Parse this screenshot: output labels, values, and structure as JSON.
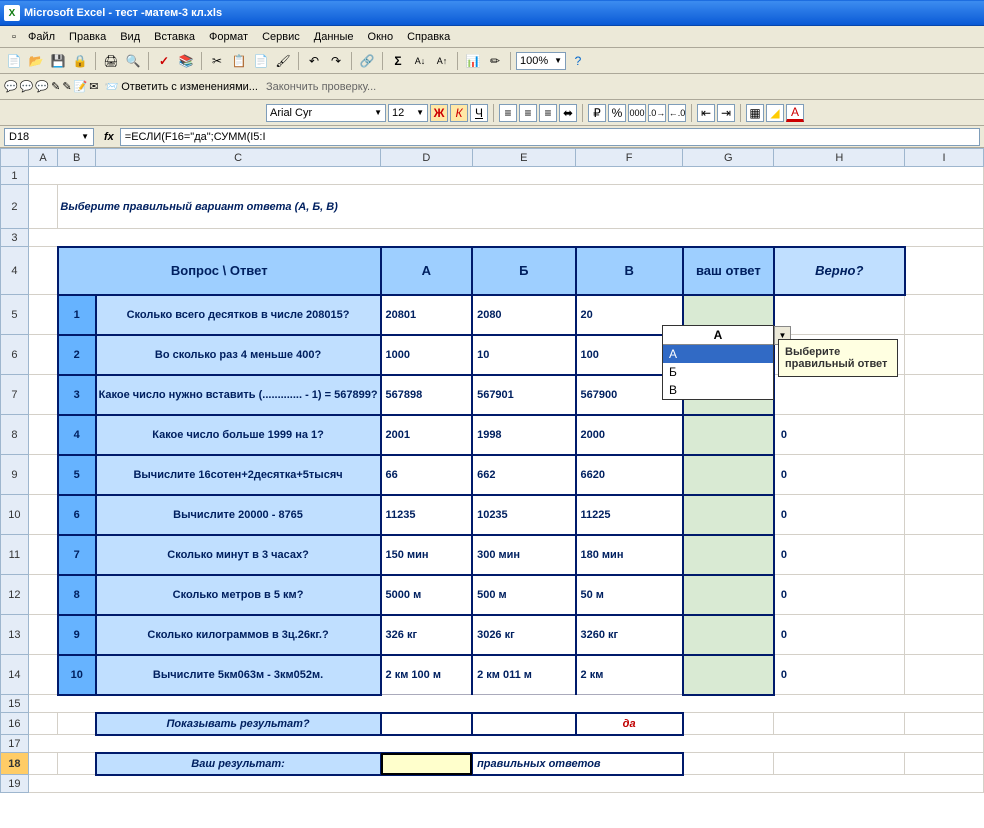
{
  "window": {
    "title": "Microsoft Excel - тест -матем-3 кл.xls",
    "app_icon_letter": "X"
  },
  "menu": {
    "items": [
      "Файл",
      "Правка",
      "Вид",
      "Вставка",
      "Формат",
      "Сервис",
      "Данные",
      "Окно",
      "Справка"
    ]
  },
  "toolbar": {
    "zoom": "100%",
    "font_name": "Arial Cyr",
    "font_size": "12",
    "review_reply": "Ответить с изменениями...",
    "review_end": "Закончить проверку..."
  },
  "namebox": {
    "cell_ref": "D18",
    "fx_label": "fx",
    "formula": "=ЕСЛИ(F16=\"да\";СУММ(I5:I"
  },
  "columns": [
    "A",
    "B",
    "C",
    "D",
    "E",
    "F",
    "G",
    "H",
    "I"
  ],
  "rows": [
    "1",
    "2",
    "3",
    "4",
    "5",
    "6",
    "7",
    "8",
    "9",
    "10",
    "11",
    "12",
    "13",
    "14",
    "15",
    "16",
    "17",
    "18",
    "19"
  ],
  "quiz": {
    "title": "Выберите правильный вариант ответа (А, Б, В)",
    "headers": {
      "question": "Вопрос   \\   Ответ",
      "a": "А",
      "b": "Б",
      "c": "В",
      "user": "ваш ответ",
      "correct": "Верно?"
    },
    "questions": [
      {
        "n": "1",
        "q": "Сколько всего десятков в числе 208015?",
        "a": "20801",
        "b": "2080",
        "c": "20",
        "user": "А",
        "verno": ""
      },
      {
        "n": "2",
        "q": "Во сколько раз 4 меньше 400?",
        "a": "1000",
        "b": "10",
        "c": "100",
        "user": "",
        "verno": ""
      },
      {
        "n": "3",
        "q": "Какое число нужно вставить (.............  - 1) = 567899?",
        "a": "567898",
        "b": "567901",
        "c": "567900",
        "user": "",
        "verno": ""
      },
      {
        "n": "4",
        "q": "Какое число больше 1999 на 1?",
        "a": "2001",
        "b": "1998",
        "c": "2000",
        "user": "",
        "verno": "0"
      },
      {
        "n": "5",
        "q": "Вычислите 16сотен+2десятка+5тысяч",
        "a": "66",
        "b": "662",
        "c": "6620",
        "user": "",
        "verno": "0"
      },
      {
        "n": "6",
        "q": "Вычислите   20000 - 8765",
        "a": "11235",
        "b": "10235",
        "c": "11225",
        "user": "",
        "verno": "0"
      },
      {
        "n": "7",
        "q": "Сколько минут в 3 часах?",
        "a": "150 мин",
        "b": " 300 мин",
        "c": "180 мин",
        "user": "",
        "verno": "0"
      },
      {
        "n": "8",
        "q": "Сколько метров в 5 км?",
        "a": "5000 м",
        "b": "500 м",
        "c": " 50 м",
        "user": "",
        "verno": "0"
      },
      {
        "n": "9",
        "q": "Сколько килограммов в 3ц.26кг.?",
        "a": " 326 кг",
        "b": "3026 кг",
        "c": "3260 кг",
        "user": "",
        "verno": "0"
      },
      {
        "n": "10",
        "q": "Вычислите 5км063м - 3км052м.",
        "a": "2 км 100 м",
        "b": "2 км 011 м",
        "c": "2 км",
        "user": "",
        "verno": "0"
      }
    ],
    "show_result_label": "Показывать результат?",
    "show_result_value": "да",
    "your_result_label": "Ваш результат:",
    "your_result_suffix": "правильных ответов"
  },
  "dropdown": {
    "selected": "А",
    "options": [
      "А",
      "Б",
      "В"
    ]
  },
  "tooltip": {
    "text": "Выберите правильный ответ"
  },
  "colors": {
    "header_bg": "#9ecfff",
    "light_blue": "#c0dfff",
    "row_num_bg": "#66b3ff",
    "user_bg": "#d9ead3",
    "border": "#001a6b",
    "text": "#002060",
    "result_bg": "#ffffcc",
    "da_color": "#c00000"
  }
}
